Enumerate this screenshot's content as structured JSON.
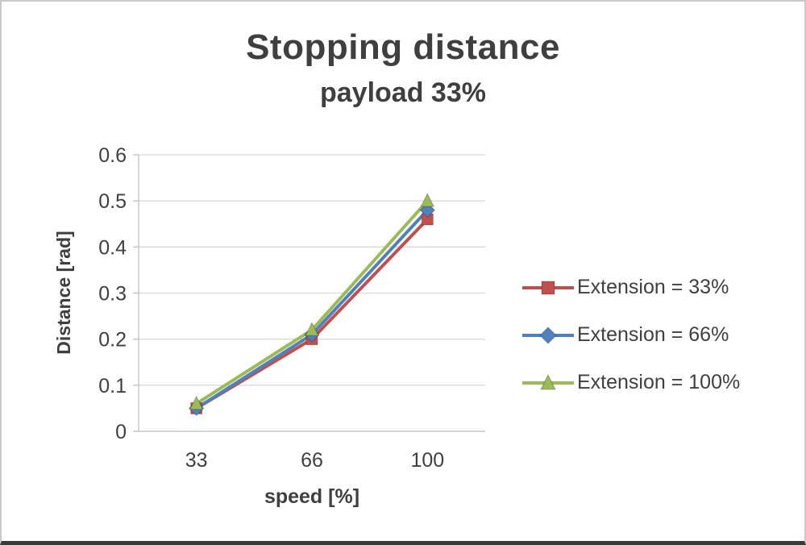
{
  "chart_data": {
    "type": "line",
    "title": "Stopping distance",
    "subtitle": "payload 33%",
    "xlabel": "speed [%]",
    "ylabel": "Distance [rad]",
    "categories": [
      "33",
      "66",
      "100"
    ],
    "y_ticks": [
      "0",
      "0.1",
      "0.2",
      "0.3",
      "0.4",
      "0.5",
      "0.6"
    ],
    "ylim": [
      0,
      0.6
    ],
    "grid": true,
    "legend_position": "right",
    "series": [
      {
        "name": "Extension = 33%",
        "color": "#c0504d",
        "marker": "square",
        "values": [
          0.05,
          0.2,
          0.46
        ]
      },
      {
        "name": "Extension = 66%",
        "color": "#4f81bd",
        "marker": "diamond",
        "values": [
          0.05,
          0.21,
          0.48
        ]
      },
      {
        "name": "Extension = 100%",
        "color": "#9bbb59",
        "marker": "triangle",
        "values": [
          0.06,
          0.22,
          0.5
        ]
      }
    ]
  }
}
